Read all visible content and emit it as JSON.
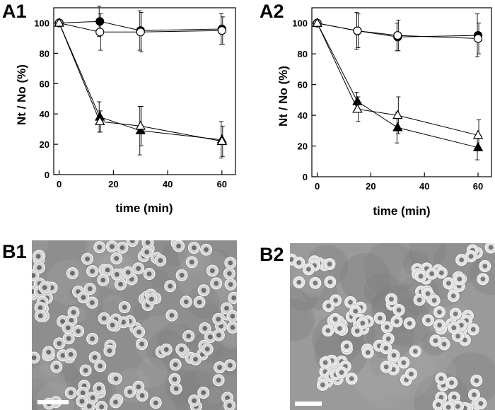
{
  "panels": {
    "A1": "A1",
    "A2": "A2",
    "B1": "B1",
    "B2": "B2"
  },
  "chart_data": [
    {
      "type": "line",
      "panel": "A1",
      "xlabel": "time (min)",
      "ylabel": "Nt / No (%)",
      "xlim": [
        -2,
        65
      ],
      "ylim": [
        0,
        110
      ],
      "xticks": [
        0,
        20,
        40,
        60
      ],
      "yticks": [
        0,
        20,
        40,
        60,
        80,
        100
      ],
      "grid": false,
      "series": [
        {
          "marker": "filled-circle",
          "x": [
            0,
            15,
            30,
            60
          ],
          "y": [
            100,
            101,
            95,
            96
          ],
          "err": [
            0,
            10,
            13,
            10
          ]
        },
        {
          "marker": "open-circle",
          "x": [
            0,
            15,
            30,
            60
          ],
          "y": [
            100,
            94,
            94,
            95
          ],
          "err": [
            0,
            12,
            13,
            9
          ]
        },
        {
          "marker": "filled-triangle",
          "x": [
            0,
            15,
            30,
            60
          ],
          "y": [
            100,
            38,
            29,
            23
          ],
          "err": [
            0,
            10,
            16,
            12
          ]
        },
        {
          "marker": "open-triangle",
          "x": [
            0,
            15,
            30,
            60
          ],
          "y": [
            100,
            35,
            32,
            22
          ],
          "err": [
            0,
            7,
            13,
            10
          ]
        }
      ]
    },
    {
      "type": "line",
      "panel": "A2",
      "xlabel": "time (min)",
      "ylabel": "Nt / No (%)",
      "xlim": [
        -2,
        65
      ],
      "ylim": [
        0,
        110
      ],
      "xticks": [
        0,
        20,
        40,
        60
      ],
      "yticks": [
        0,
        20,
        40,
        60,
        80,
        100
      ],
      "grid": false,
      "series": [
        {
          "marker": "filled-circle",
          "x": [
            0,
            15,
            30,
            60
          ],
          "y": [
            100,
            95,
            91,
            92
          ],
          "err": [
            0,
            12,
            9,
            14
          ]
        },
        {
          "marker": "open-circle",
          "x": [
            0,
            15,
            30,
            60
          ],
          "y": [
            100,
            95,
            92,
            90
          ],
          "err": [
            0,
            11,
            10,
            10
          ]
        },
        {
          "marker": "filled-triangle",
          "x": [
            0,
            15,
            30,
            60
          ],
          "y": [
            100,
            49,
            32,
            19
          ],
          "err": [
            0,
            6,
            10,
            8
          ]
        },
        {
          "marker": "open-triangle",
          "x": [
            0,
            15,
            30,
            60
          ],
          "y": [
            100,
            44,
            40,
            27
          ],
          "err": [
            0,
            8,
            12,
            10
          ]
        }
      ]
    }
  ],
  "micrographs": [
    {
      "panel": "B1",
      "background": "#8e8e8e",
      "cell_fill": "#d4d4d4",
      "cell_core": "#4a4a4a",
      "pattern": "dispersed"
    },
    {
      "panel": "B2",
      "background": "#9a9a9a",
      "cell_fill": "#e2e2e2",
      "cell_core": "#555555",
      "pattern": "clustered"
    }
  ]
}
